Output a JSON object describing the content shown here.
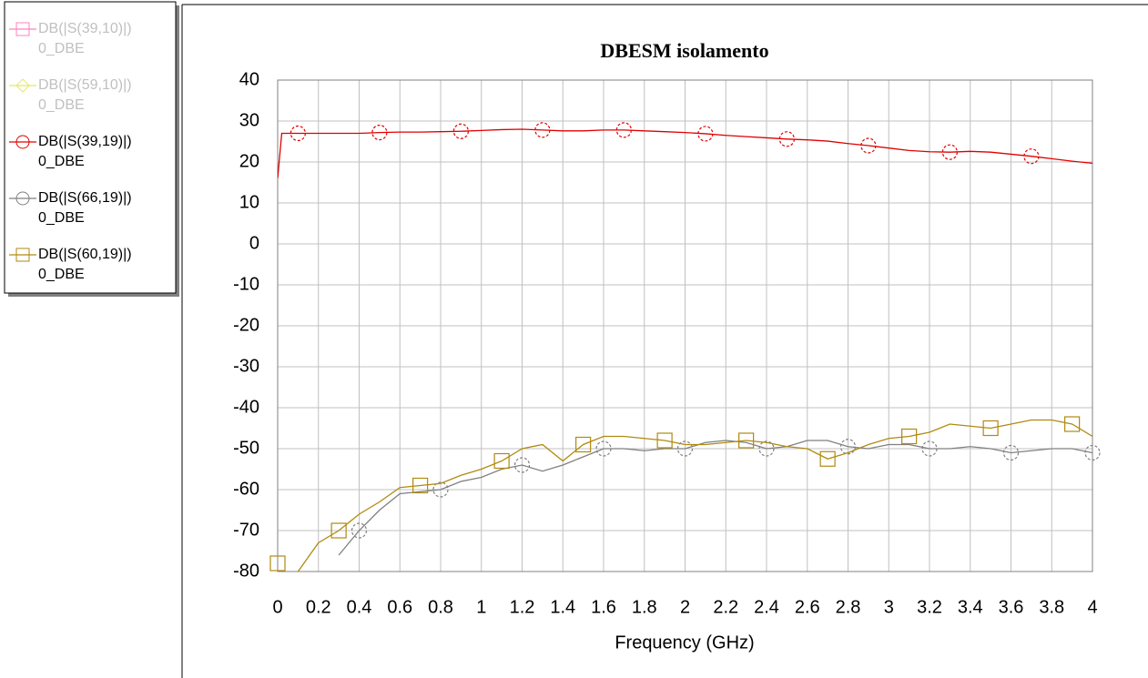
{
  "chart_data": {
    "type": "line",
    "title": "DBESM isolamento",
    "x_label": "Frequency (GHz)",
    "x": [
      0,
      0.02,
      0.1,
      0.2,
      0.3,
      0.4,
      0.5,
      0.6,
      0.7,
      0.8,
      0.9,
      1.0,
      1.1,
      1.2,
      1.3,
      1.4,
      1.5,
      1.6,
      1.7,
      1.8,
      1.9,
      2.0,
      2.1,
      2.2,
      2.3,
      2.4,
      2.5,
      2.6,
      2.7,
      2.8,
      2.9,
      3.0,
      3.1,
      3.2,
      3.3,
      3.4,
      3.5,
      3.6,
      3.7,
      3.8,
      3.9,
      4.0
    ],
    "xlim": [
      0,
      4
    ],
    "xticks": [
      0,
      0.2,
      0.4,
      0.6,
      0.8,
      1,
      1.2,
      1.4,
      1.6,
      1.8,
      2,
      2.2,
      2.4,
      2.6,
      2.8,
      3,
      3.2,
      3.4,
      3.6,
      3.8,
      4
    ],
    "ylim": [
      -80,
      40
    ],
    "yticks": [
      -80,
      -70,
      -60,
      -50,
      -40,
      -30,
      -20,
      -10,
      0,
      10,
      20,
      30,
      40
    ],
    "grid": true,
    "legend": "top-left",
    "series": [
      {
        "name": "DB(|S(39,10)|)",
        "source": "0_DBE",
        "color": "#ff80c0",
        "marker": "square",
        "visible": false
      },
      {
        "name": "DB(|S(59,10)|)",
        "source": "0_DBE",
        "color": "#e8e860",
        "marker": "diamond",
        "visible": false
      },
      {
        "name": "DB(|S(39,19)|)",
        "source": "0_DBE",
        "color": "#e00000",
        "marker": "circle",
        "visible": true,
        "values": [
          16,
          27,
          27,
          27,
          27,
          27,
          27.2,
          27.3,
          27.3,
          27.4,
          27.5,
          27.7,
          27.9,
          28,
          27.8,
          27.6,
          27.6,
          27.8,
          27.8,
          27.6,
          27.4,
          27.2,
          26.9,
          26.5,
          26.2,
          25.9,
          25.6,
          25.4,
          25.1,
          24.5,
          24,
          23.4,
          22.8,
          22.5,
          22.4,
          22.6,
          22.4,
          21.9,
          21.4,
          20.8,
          20.2,
          19.7
        ]
      },
      {
        "name": "DB(|S(66,19)|)",
        "source": "0_DBE",
        "color": "#808080",
        "marker": "circle",
        "visible": true,
        "values": [
          null,
          null,
          null,
          null,
          -76,
          -70,
          -65,
          -61,
          -60.5,
          -60,
          -58,
          -57,
          -55,
          -54,
          -55.5,
          -54,
          -52,
          -50,
          -50,
          -50.5,
          -50,
          -50,
          -48.5,
          -48,
          -48.5,
          -50,
          -49.5,
          -48,
          -48,
          -49.5,
          -50,
          -49,
          -49,
          -50,
          -50,
          -49.5,
          -50,
          -51,
          -50.5,
          -50,
          -50,
          -51
        ]
      },
      {
        "name": "DB(|S(60,19)|)",
        "source": "0_DBE",
        "color": "#b08a10",
        "marker": "square",
        "visible": true,
        "values": [
          -78,
          null,
          -80,
          -73,
          -70,
          -66,
          -63,
          -59.5,
          -59,
          -58.5,
          -56.5,
          -55,
          -53,
          -50,
          -49,
          -53,
          -49,
          -47,
          -47,
          -47.5,
          -48,
          -49,
          -49,
          -48.5,
          -48,
          -48.5,
          -49.5,
          -50,
          -52.5,
          -51,
          -49,
          -47.5,
          -47,
          -46,
          -44,
          -44.5,
          -45,
          -44,
          -43,
          -43,
          -44,
          -47
        ]
      }
    ]
  }
}
